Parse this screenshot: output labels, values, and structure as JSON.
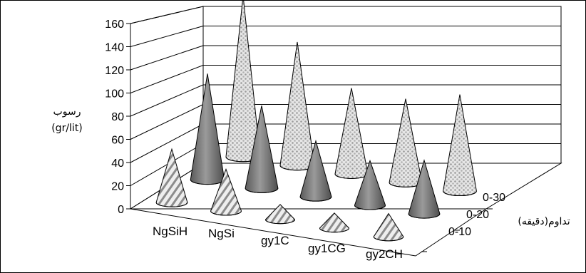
{
  "chart_data": {
    "type": "3d-cone",
    "ylabel": "رسوب",
    "yunit": "(gr/lit)",
    "zlabel": "تداوم(دقیقه)",
    "yticks": [
      "0",
      "20",
      "40",
      "60",
      "80",
      "100",
      "120",
      "140",
      "160"
    ],
    "ylim": [
      0,
      160
    ],
    "categories": [
      "NgSiH",
      "NgSi",
      "gy1C",
      "gy1CG",
      "gy2CH"
    ],
    "series": [
      {
        "name": "0-10",
        "values": [
          46,
          36,
          13,
          13,
          20
        ]
      },
      {
        "name": "0-20",
        "values": [
          95,
          74,
          50,
          40,
          48
        ]
      },
      {
        "name": "0-30",
        "values": [
          150,
          115,
          80,
          78,
          90
        ]
      }
    ],
    "grid": true,
    "colors": {
      "0-10": "#d9d9d9",
      "0-20": "#7f7f7f",
      "0-30": "#c8c8c8"
    }
  }
}
